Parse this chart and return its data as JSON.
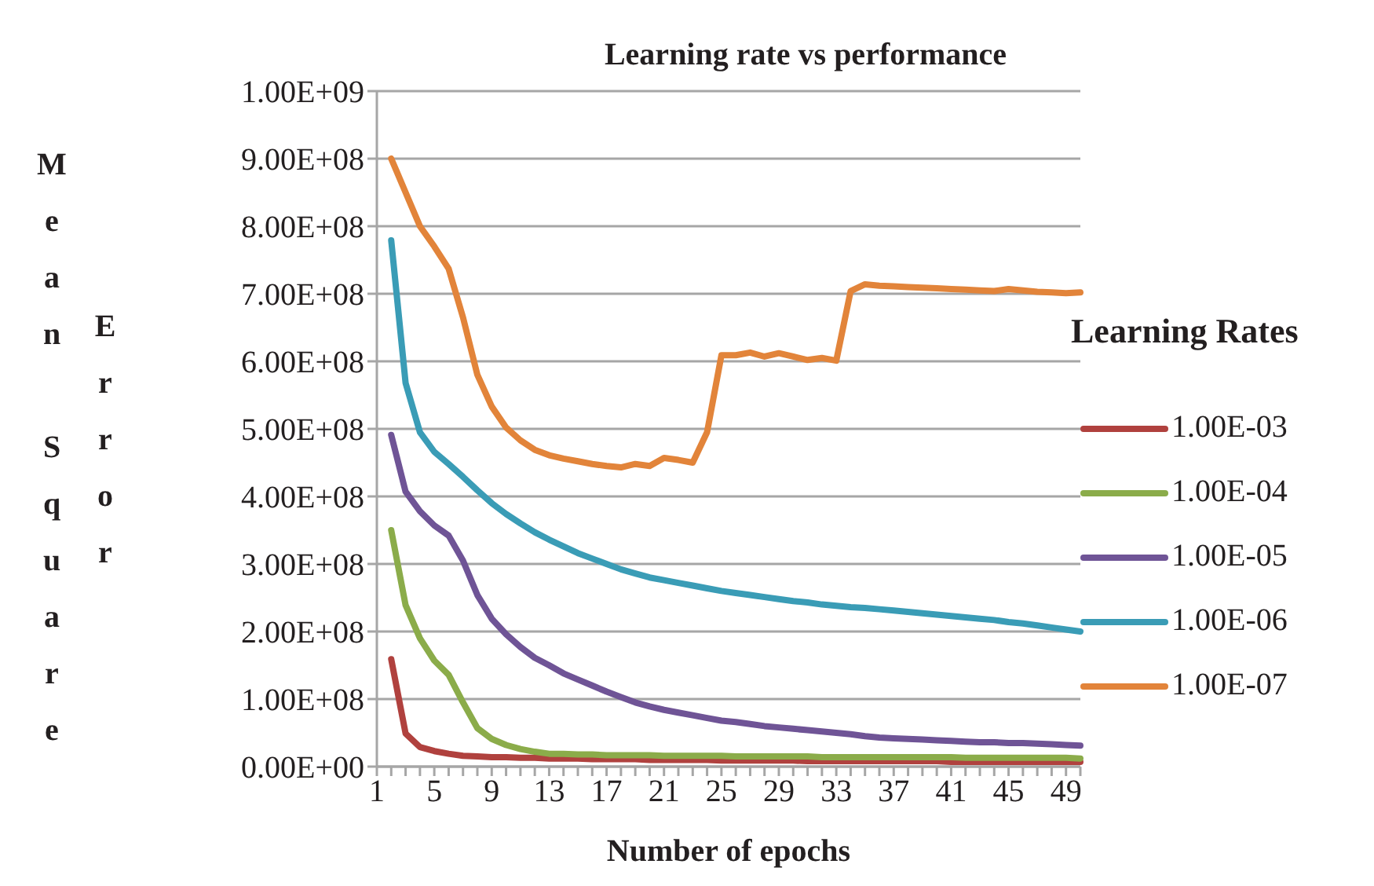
{
  "chart_data": {
    "type": "line",
    "title": "Learning rate vs performance",
    "xlabel": "Number of epochs",
    "ylabel": "Mean Square Error",
    "legend_title": "Learning Rates",
    "legend": "right",
    "grid": "y",
    "categories": [
      "1",
      null,
      null,
      null,
      "5",
      null,
      null,
      null,
      "9",
      null,
      null,
      null,
      "13",
      null,
      null,
      null,
      "17",
      null,
      null,
      null,
      "21",
      null,
      null,
      null,
      "25",
      null,
      null,
      null,
      "29",
      null,
      null,
      null,
      "33",
      null,
      null,
      null,
      "37",
      null,
      null,
      null,
      "41",
      null,
      null,
      null,
      "45",
      null,
      null,
      null,
      "49",
      null
    ],
    "ylim": [
      0,
      1000000000
    ],
    "yticks": [
      {
        "value": 0,
        "label": "0.00E+00"
      },
      {
        "value": 100000000,
        "label": "1.00E+08"
      },
      {
        "value": 200000000,
        "label": "2.00E+08"
      },
      {
        "value": 300000000,
        "label": "3.00E+08"
      },
      {
        "value": 400000000,
        "label": "4.00E+08"
      },
      {
        "value": 500000000,
        "label": "5.00E+08"
      },
      {
        "value": 600000000,
        "label": "6.00E+08"
      },
      {
        "value": 700000000,
        "label": "7.00E+08"
      },
      {
        "value": 800000000,
        "label": "8.00E+08"
      },
      {
        "value": 900000000,
        "label": "9.00E+08"
      },
      {
        "value": 1000000000,
        "label": "1.00E+09"
      }
    ],
    "series": [
      {
        "name": "1.00E-03",
        "color": "#b0413e",
        "values": [
          null,
          159000000,
          49000000,
          29000000,
          23000000,
          19000000,
          16000000,
          15000000,
          14000000,
          14000000,
          13000000,
          13000000,
          12000000,
          12000000,
          12000000,
          11000000,
          11000000,
          11000000,
          11000000,
          10000000,
          10000000,
          10000000,
          10000000,
          10000000,
          9000000,
          9000000,
          9000000,
          9000000,
          9000000,
          9000000,
          8000000,
          8000000,
          8000000,
          8000000,
          8000000,
          8000000,
          8000000,
          8000000,
          8000000,
          8000000,
          7000000,
          7000000,
          7000000,
          7000000,
          7000000,
          7000000,
          7000000,
          7000000,
          7000000,
          7000000
        ]
      },
      {
        "name": "1.00E-04",
        "color": "#8bac4a",
        "values": [
          null,
          350000000,
          239000000,
          190000000,
          157000000,
          136000000,
          95000000,
          57000000,
          41000000,
          32000000,
          26000000,
          22000000,
          19000000,
          19000000,
          18000000,
          18000000,
          17000000,
          17000000,
          17000000,
          17000000,
          16000000,
          16000000,
          16000000,
          16000000,
          16000000,
          15000000,
          15000000,
          15000000,
          15000000,
          15000000,
          15000000,
          14000000,
          14000000,
          14000000,
          14000000,
          14000000,
          14000000,
          14000000,
          14000000,
          14000000,
          14000000,
          13000000,
          13000000,
          13000000,
          13000000,
          13000000,
          13000000,
          13000000,
          13000000,
          12000000
        ]
      },
      {
        "name": "1.00E-05",
        "color": "#6f5496",
        "values": [
          null,
          491000000,
          407000000,
          378000000,
          357000000,
          342000000,
          305000000,
          254000000,
          219000000,
          196000000,
          177000000,
          161000000,
          150000000,
          138000000,
          129000000,
          120000000,
          111000000,
          103000000,
          95000000,
          89000000,
          84000000,
          80000000,
          76000000,
          72000000,
          68000000,
          66000000,
          63000000,
          60000000,
          58000000,
          56000000,
          54000000,
          52000000,
          50000000,
          48000000,
          45000000,
          43000000,
          42000000,
          41000000,
          40000000,
          39000000,
          38000000,
          37000000,
          36000000,
          36000000,
          35000000,
          35000000,
          34000000,
          33000000,
          32000000,
          31000000
        ]
      },
      {
        "name": "1.00E-06",
        "color": "#3a9cb6",
        "values": [
          null,
          779000000,
          568000000,
          495000000,
          466000000,
          448000000,
          429000000,
          409000000,
          390000000,
          374000000,
          360000000,
          347000000,
          336000000,
          326000000,
          316000000,
          308000000,
          300000000,
          292000000,
          286000000,
          280000000,
          276000000,
          272000000,
          268000000,
          264000000,
          260000000,
          257000000,
          254000000,
          251000000,
          248000000,
          245000000,
          243000000,
          240000000,
          238000000,
          236000000,
          235000000,
          233000000,
          231000000,
          229000000,
          227000000,
          225000000,
          223000000,
          221000000,
          219000000,
          217000000,
          214000000,
          212000000,
          209000000,
          206000000,
          203000000,
          200000000
        ]
      },
      {
        "name": "1.00E-07",
        "color": "#e2843a",
        "values": [
          null,
          900000000,
          850000000,
          800000000,
          770000000,
          737000000,
          665000000,
          580000000,
          533000000,
          502000000,
          483000000,
          469000000,
          461000000,
          456000000,
          452000000,
          448000000,
          445000000,
          443000000,
          448000000,
          445000000,
          457000000,
          454000000,
          450000000,
          495000000,
          609000000,
          609000000,
          613000000,
          607000000,
          612000000,
          607000000,
          602000000,
          605000000,
          601000000,
          704000000,
          714000000,
          712000000,
          711000000,
          710000000,
          709000000,
          708000000,
          707000000,
          706000000,
          705000000,
          704000000,
          707000000,
          705000000,
          703000000,
          702000000,
          701000000,
          702000000
        ]
      }
    ]
  }
}
